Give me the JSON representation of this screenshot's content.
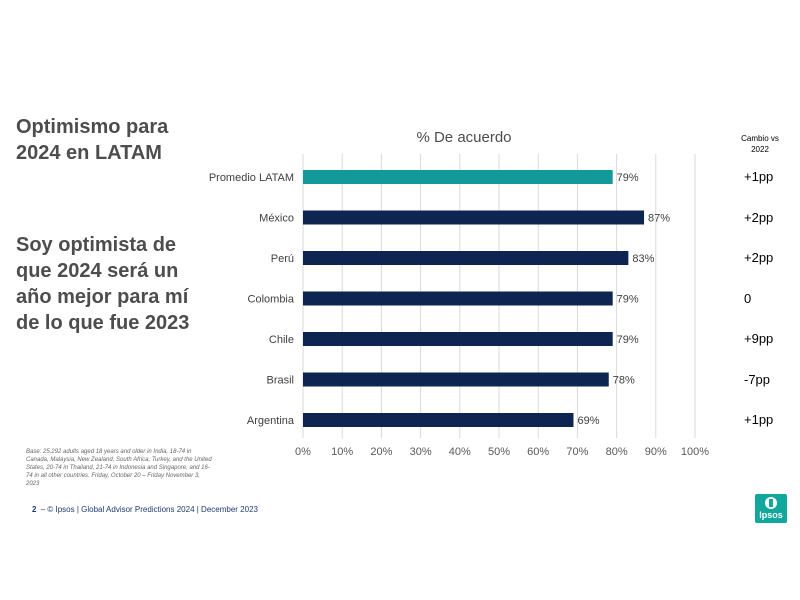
{
  "slide": {
    "title": "Optimismo para 2024 en LATAM",
    "subtitle": "Soy optimista de que 2024 será un año mejor para mí de lo que fue 2023",
    "footnote": "Base: 25,292 adults aged 18 years and older in India, 18-74 in Canada, Malaysia, New Zealand, South Africa, Turkey, and the United States, 20-74 in Thailand, 21-74 in Indonesia and Singapore, and 16-74 in all other countries. Friday, October 20 – Friday November 3, 2023",
    "footer_number": "2",
    "footer_text": "– © Ipsos | Global Advisor Predictions 2024 | December 2023",
    "logo_text": "Ipsos"
  },
  "change_column": {
    "header": "Cambio vs 2022",
    "values": [
      "+1pp",
      "+2pp",
      "+2pp",
      "0",
      "+9pp",
      "-7pp",
      "+1pp"
    ]
  },
  "colors": {
    "highlight": "#129a9a",
    "bar": "#0e2451",
    "grid": "#d9d9d9",
    "logo": "#12a79d"
  },
  "chart_data": {
    "type": "bar",
    "orientation": "horizontal",
    "title": "% De acuerdo",
    "categories": [
      "Promedio LATAM",
      "México",
      "Perú",
      "Colombia",
      "Chile",
      "Brasil",
      "Argentina"
    ],
    "values": [
      79,
      87,
      83,
      79,
      79,
      78,
      69
    ],
    "data_labels": [
      "79%",
      "87%",
      "83%",
      "79%",
      "79%",
      "78%",
      "69%"
    ],
    "highlight_index": 0,
    "xlim": [
      0,
      100
    ],
    "xticks": [
      0,
      10,
      20,
      30,
      40,
      50,
      60,
      70,
      80,
      90,
      100
    ],
    "xtick_labels": [
      "0%",
      "10%",
      "20%",
      "30%",
      "40%",
      "50%",
      "60%",
      "70%",
      "80%",
      "90%",
      "100%"
    ],
    "grid": "vertical",
    "legend": "none"
  }
}
